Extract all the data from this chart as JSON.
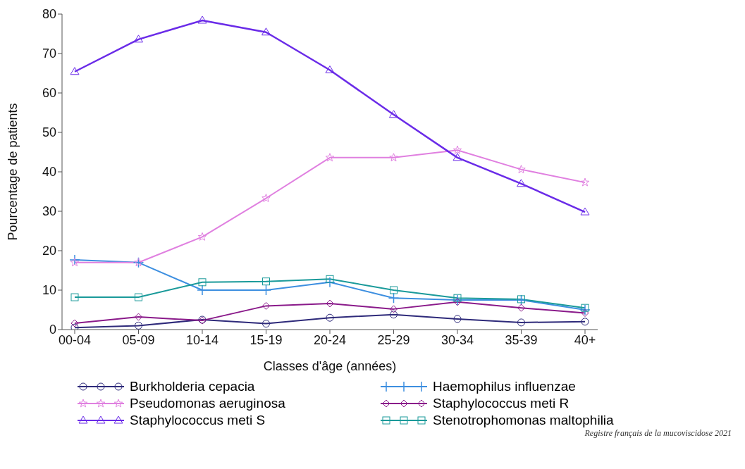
{
  "chart_data": {
    "type": "line",
    "xlabel": "Classes d'âge (années)",
    "ylabel": "Pourcentage de patients",
    "categories": [
      "00-04",
      "05-09",
      "10-14",
      "15-19",
      "20-24",
      "25-29",
      "30-34",
      "35-39",
      "40+"
    ],
    "ylim": [
      0,
      80
    ],
    "yticks": [
      0,
      10,
      20,
      30,
      40,
      50,
      60,
      70,
      80
    ],
    "grid": false,
    "legend": "bottom",
    "line_style": "solid",
    "series": [
      {
        "name": "Burkholderia cepacia",
        "color": "#2e2a7a",
        "marker": "circle",
        "values": [
          0.5,
          1,
          2.5,
          1.5,
          3,
          3.8,
          2.7,
          1.8,
          2
        ]
      },
      {
        "name": "Haemophilus influenzae",
        "color": "#3d8fe0",
        "marker": "cross",
        "values": [
          17.7,
          17,
          10,
          10,
          12,
          8,
          7.5,
          7.5,
          5
        ]
      },
      {
        "name": "Pseudomonas aeruginosa",
        "color": "#e080e0",
        "marker": "star",
        "values": [
          17,
          17,
          23.5,
          33.3,
          43.6,
          43.6,
          45.5,
          40.6,
          37.3
        ]
      },
      {
        "name": "Staphylococcus meti R",
        "color": "#8a1a8a",
        "marker": "diamond",
        "values": [
          1.6,
          3.2,
          2.3,
          6,
          6.6,
          5.2,
          7,
          5.5,
          4.2
        ]
      },
      {
        "name": "Staphylococcus meti S",
        "color": "#6a2be8",
        "marker": "triangle",
        "values": [
          65.4,
          73.6,
          78.4,
          75.4,
          65.8,
          54.5,
          43.6,
          37,
          29.8
        ]
      },
      {
        "name": "Stenotrophomonas maltophilia",
        "color": "#1a9a9a",
        "marker": "square",
        "values": [
          8.2,
          8.2,
          12,
          12.2,
          12.8,
          10,
          8,
          7.7,
          5.5
        ]
      }
    ],
    "annotations": [
      "Registre français de la mucoviscidose 2021"
    ]
  }
}
